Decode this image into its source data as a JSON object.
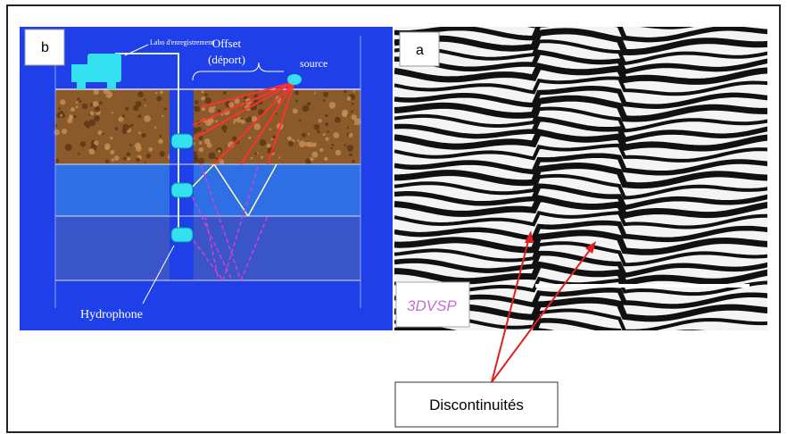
{
  "panel_b": {
    "label": "b",
    "lab": "Labo d'enregistrement",
    "offset": "Offset",
    "offset_fr": "(déport)",
    "source": "source",
    "hydrophone": "Hydrophone"
  },
  "panel_a": {
    "label": "a",
    "method": "3DVSP"
  },
  "callout": "Discontinuités"
}
